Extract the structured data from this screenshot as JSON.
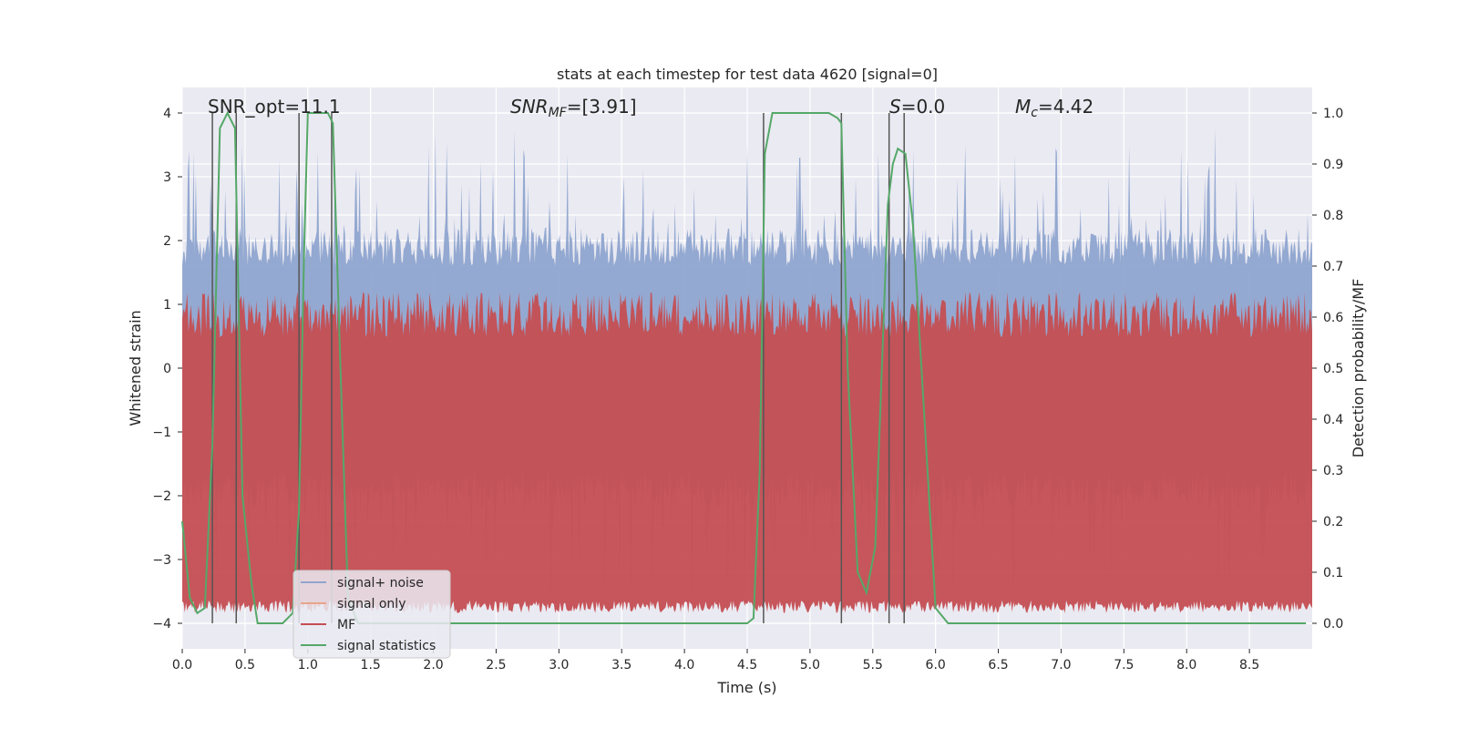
{
  "chart_data": {
    "type": "line",
    "title": "stats at each timestep for test data 4620 [signal=0]",
    "xlabel": "Time (s)",
    "ylabel": "Whitened strain",
    "ylabel_right": "Detection probability/MF",
    "xlim": [
      0.0,
      9.0
    ],
    "ylim": [
      -4.4,
      4.4
    ],
    "ylim_right": [
      -0.05,
      1.05
    ],
    "grid": true,
    "x_ticks": [
      "0.0",
      "0.5",
      "1.0",
      "1.5",
      "2.0",
      "2.5",
      "3.0",
      "3.5",
      "4.0",
      "4.5",
      "5.0",
      "5.5",
      "6.0",
      "6.5",
      "7.0",
      "7.5",
      "8.0",
      "8.5"
    ],
    "y_ticks": [
      "4",
      "3",
      "2",
      "1",
      "0",
      "−1",
      "−2",
      "−3",
      "−4"
    ],
    "y_ticks_right": [
      "1.0",
      "0.9",
      "0.8",
      "0.7",
      "0.6",
      "0.5",
      "0.4",
      "0.3",
      "0.2",
      "0.1",
      "0.0"
    ],
    "annotations": {
      "snr_opt": "SNR_opt=11.1",
      "snr_mf_sym": "SNR",
      "snr_mf_sub": "MF",
      "snr_mf_val": "=[3.91]",
      "s_sym": "S",
      "s_val": "=0.0",
      "mc_sym": "M",
      "mc_sub": "c",
      "mc_val": "=4.42"
    },
    "legend": {
      "position": "lower-left",
      "entries": [
        {
          "label": "signal+ noise",
          "color": "#8fa5cf"
        },
        {
          "label": "signal only",
          "color": "#e8a58a"
        },
        {
          "label": "MF",
          "color": "#c44e52"
        },
        {
          "label": "signal statistics",
          "color": "#55a868"
        }
      ]
    },
    "noise_band": {
      "name": "signal+ noise",
      "color": "#8fa5cf",
      "core_abs": 1.6,
      "peak_max": 3.3
    },
    "mf_band": {
      "name": "MF",
      "color": "#c44e52",
      "low": 0.02,
      "high": 0.65
    },
    "vlines": [
      0.24,
      0.43,
      0.93,
      1.19,
      4.63,
      5.25,
      5.63,
      5.75
    ],
    "series": [
      {
        "name": "signal statistics",
        "axis": "right",
        "color": "#55a868",
        "x": [
          0.0,
          0.06,
          0.12,
          0.18,
          0.24,
          0.3,
          0.36,
          0.42,
          0.48,
          0.55,
          0.6,
          0.7,
          0.8,
          0.88,
          0.93,
          0.97,
          1.0,
          1.08,
          1.16,
          1.2,
          1.26,
          1.32,
          1.4,
          2.0,
          3.0,
          4.0,
          4.5,
          4.55,
          4.6,
          4.64,
          4.7,
          4.8,
          5.0,
          5.15,
          5.22,
          5.25,
          5.3,
          5.38,
          5.45,
          5.52,
          5.58,
          5.62,
          5.66,
          5.7,
          5.76,
          5.82,
          5.9,
          6.0,
          6.1,
          6.3,
          7.0,
          8.0,
          8.95
        ],
        "y": [
          0.2,
          0.05,
          0.02,
          0.03,
          0.35,
          0.97,
          1.0,
          0.97,
          0.25,
          0.08,
          0.0,
          0.0,
          0.0,
          0.02,
          0.22,
          0.72,
          1.0,
          1.0,
          1.0,
          0.98,
          0.5,
          0.05,
          0.0,
          0.0,
          0.0,
          0.0,
          0.0,
          0.01,
          0.3,
          0.92,
          1.0,
          1.0,
          1.0,
          1.0,
          0.99,
          0.98,
          0.5,
          0.1,
          0.06,
          0.15,
          0.55,
          0.82,
          0.9,
          0.93,
          0.92,
          0.78,
          0.45,
          0.03,
          0.0,
          0.0,
          0.0,
          0.0,
          0.0
        ]
      }
    ]
  }
}
